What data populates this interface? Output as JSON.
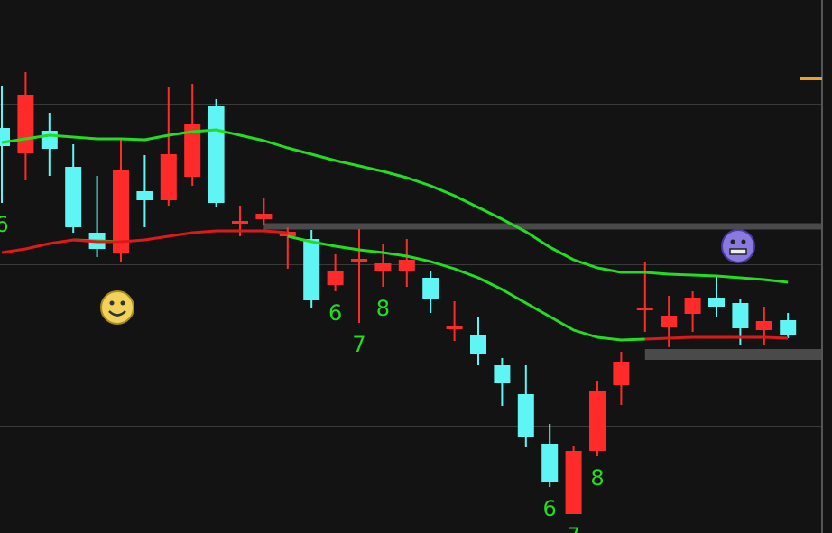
{
  "chart_data": {
    "type": "candlestick",
    "ylim": [
      0,
      591
    ],
    "up_color": "#ff2b2b",
    "down_color": "#5ff5f5",
    "open": [
      449,
      421,
      446,
      406,
      333,
      311,
      379,
      369,
      395,
      474,
      343,
      348,
      329,
      326,
      275,
      301,
      290,
      291,
      283,
      226,
      219,
      186,
      154,
      99,
      21,
      91,
      164,
      247,
      228,
      243,
      261,
      255,
      225,
      236
    ],
    "high": [
      496,
      511,
      466,
      431,
      396,
      438,
      419,
      494,
      498,
      481,
      363,
      371,
      339,
      336,
      309,
      337,
      321,
      326,
      291,
      257,
      239,
      194,
      186,
      121,
      96,
      169,
      201,
      301,
      263,
      268,
      286,
      259,
      251,
      244
    ],
    "low": [
      366,
      391,
      396,
      333,
      306,
      301,
      339,
      363,
      385,
      361,
      329,
      341,
      293,
      249,
      268,
      233,
      273,
      273,
      244,
      213,
      186,
      141,
      95,
      51,
      21,
      85,
      142,
      223,
      206,
      223,
      239,
      208,
      209,
      216
    ],
    "close": [
      429,
      486,
      426,
      339,
      315,
      403,
      369,
      420,
      454,
      366,
      346,
      354,
      334,
      258,
      290,
      304,
      299,
      303,
      259,
      229,
      198,
      166,
      107,
      57,
      91,
      157,
      190,
      250,
      241,
      261,
      251,
      227,
      235,
      219
    ],
    "series": [
      {
        "color": "#22dd22",
        "values": [
          433,
          437,
          441,
          439,
          437,
          437,
          436,
          441,
          445,
          447,
          441,
          435,
          427,
          420,
          413,
          407,
          401,
          394,
          385,
          374,
          361,
          348,
          334,
          317,
          303,
          294,
          289,
          289,
          287,
          286,
          285,
          283,
          281,
          278
        ]
      },
      {
        "color": "#22dd22",
        "values": [
          null,
          null,
          null,
          325,
          324,
          323,
          null,
          null,
          null,
          null,
          null,
          null,
          329,
          323,
          318,
          314,
          311,
          307,
          301,
          293,
          283,
          270,
          255,
          240,
          225,
          217,
          214,
          215,
          null,
          null,
          null,
          null,
          null,
          null
        ]
      },
      {
        "color": "#e01818",
        "values": [
          311,
          315,
          321,
          325,
          323,
          323,
          325,
          329,
          333,
          335,
          335,
          335,
          333,
          null,
          null,
          null,
          null,
          null,
          null,
          null,
          null,
          null,
          null,
          null,
          null,
          null,
          null,
          215,
          216,
          217,
          217,
          217,
          217,
          216
        ]
      }
    ],
    "levels": [
      {
        "value": 340,
        "start": 11
      },
      {
        "value": 198,
        "start": 27
      }
    ],
    "annotations": [
      {
        "text": "6",
        "index": 0
      },
      {
        "text": "6",
        "index": 14
      },
      {
        "text": "7",
        "index": 15
      },
      {
        "text": "8",
        "index": 16
      },
      {
        "text": "6",
        "index": 23
      },
      {
        "text": "7",
        "index": 24
      },
      {
        "text": "8",
        "index": 25
      }
    ]
  }
}
